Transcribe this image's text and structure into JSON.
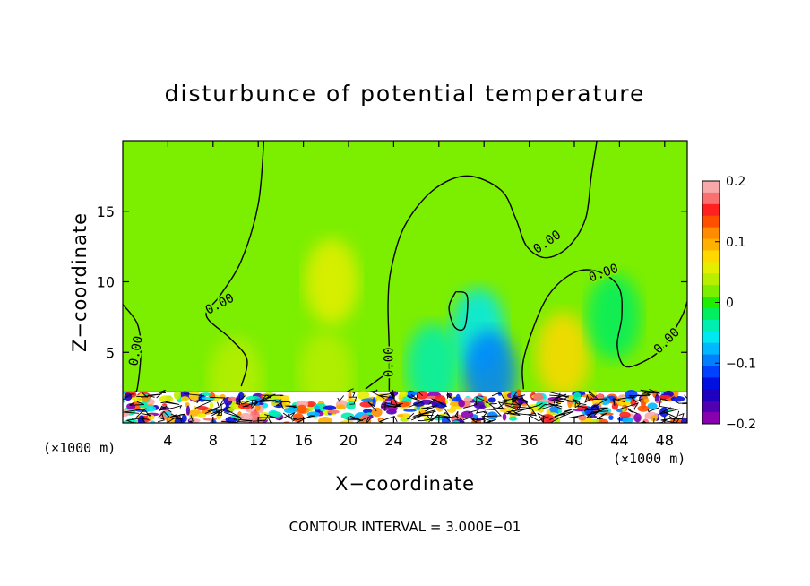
{
  "chart_data": {
    "type": "heatmap",
    "title": "disturbunce of potential temperature",
    "xlabel": "X−coordinate",
    "ylabel": "Z−coordinate",
    "x_unit_left": "(×1000 m)",
    "x_unit_right": "(×1000 m)",
    "footer": "CONTOUR INTERVAL = 3.000E−01",
    "xlim": [
      0,
      50
    ],
    "ylim": [
      0,
      20
    ],
    "x_ticks": [
      4,
      8,
      12,
      16,
      20,
      24,
      28,
      32,
      36,
      40,
      44,
      48
    ],
    "x_tick_labels": [
      "4",
      "8",
      "12",
      "16",
      "20",
      "24",
      "28",
      "32",
      "36",
      "40",
      "44",
      "48"
    ],
    "y_ticks": [
      5,
      10,
      15
    ],
    "y_tick_labels": [
      "5",
      "10",
      "15"
    ],
    "colorbar": {
      "min": -0.2,
      "max": 0.2,
      "tick_values": [
        0.2,
        0.1,
        0,
        -0.1,
        -0.2
      ],
      "tick_labels": [
        "0.2",
        "0.1",
        "0",
        "−0.1",
        "−0.2"
      ],
      "colors": [
        "#f8a8a8",
        "#f87070",
        "#ff2020",
        "#ff5000",
        "#ff8c00",
        "#ffb000",
        "#ffd800",
        "#e6ee00",
        "#b8ee00",
        "#7cee00",
        "#20ee00",
        "#00ee60",
        "#00eeb0",
        "#00e8f0",
        "#00b8ff",
        "#0080ff",
        "#0040ff",
        "#0010e0",
        "#2000c0",
        "#5000b0",
        "#8800b0"
      ]
    },
    "background_value": 0.02,
    "contour_labels": [
      {
        "text": "0.00",
        "x": 1.2,
        "y": 5.1,
        "rotation": -80
      },
      {
        "text": "0.00",
        "x": 8.6,
        "y": 8.4,
        "rotation": -28
      },
      {
        "text": "0.00",
        "x": 23.6,
        "y": 4.3,
        "rotation": -90
      },
      {
        "text": "0.00",
        "x": 37.6,
        "y": 12.8,
        "rotation": -35
      },
      {
        "text": "0.00",
        "x": 42.6,
        "y": 10.6,
        "rotation": -20
      },
      {
        "text": "0.00",
        "x": 48.2,
        "y": 5.8,
        "rotation": -45
      }
    ],
    "anomalies": [
      {
        "x": 18.5,
        "y": 10.0,
        "value": 0.05
      },
      {
        "x": 18.0,
        "y": 3.5,
        "value": 0.04
      },
      {
        "x": 31.5,
        "y": 6.5,
        "value": -0.05
      },
      {
        "x": 32.5,
        "y": 3.5,
        "value": -0.09
      },
      {
        "x": 27.5,
        "y": 4.0,
        "value": -0.04
      },
      {
        "x": 39.0,
        "y": 4.8,
        "value": 0.07
      },
      {
        "x": 43.5,
        "y": 7.5,
        "value": -0.02
      },
      {
        "x": 10.0,
        "y": 3.0,
        "value": 0.03
      }
    ],
    "contour_lines": [
      [
        [
          0,
          8.4
        ],
        [
          1.3,
          7.0
        ],
        [
          1.6,
          5.0
        ],
        [
          1.3,
          2.5
        ],
        [
          1.0,
          2.2
        ]
      ],
      [
        [
          12.5,
          20.0
        ],
        [
          12.0,
          15.5
        ],
        [
          10.5,
          11.5
        ],
        [
          8.6,
          9.0
        ],
        [
          7.4,
          7.6
        ],
        [
          9.5,
          6.0
        ],
        [
          11.0,
          4.5
        ],
        [
          10.5,
          2.6
        ]
      ],
      [
        [
          23.6,
          2.3
        ],
        [
          23.6,
          5.2
        ],
        [
          23.5,
          8.5
        ],
        [
          23.8,
          11.0
        ],
        [
          25.0,
          14.0
        ],
        [
          27.5,
          16.5
        ],
        [
          30.5,
          17.5
        ],
        [
          33.5,
          16.5
        ],
        [
          34.8,
          14.5
        ],
        [
          35.8,
          12.5
        ],
        [
          37.5,
          11.7
        ],
        [
          39.5,
          12.5
        ],
        [
          41.0,
          14.5
        ],
        [
          41.5,
          17.5
        ],
        [
          42.0,
          20.0
        ]
      ],
      [
        [
          29.5,
          9.3
        ],
        [
          30.5,
          9.0
        ],
        [
          30.3,
          6.8
        ],
        [
          29.4,
          6.8
        ],
        [
          28.9,
          8.2
        ],
        [
          29.5,
          9.3
        ]
      ],
      [
        [
          35.5,
          2.4
        ],
        [
          35.5,
          4.5
        ],
        [
          37.0,
          8.0
        ],
        [
          38.5,
          9.8
        ],
        [
          40.5,
          10.8
        ],
        [
          42.5,
          10.6
        ],
        [
          44.0,
          9.5
        ],
        [
          44.2,
          7.5
        ],
        [
          43.8,
          5.5
        ],
        [
          44.5,
          4.0
        ],
        [
          46.5,
          4.5
        ],
        [
          48.0,
          5.5
        ],
        [
          49.5,
          7.5
        ],
        [
          50,
          8.6
        ]
      ],
      [
        [
          21.5,
          2.4
        ],
        [
          22.5,
          3.0
        ],
        [
          23.4,
          3.5
        ]
      ]
    ]
  }
}
